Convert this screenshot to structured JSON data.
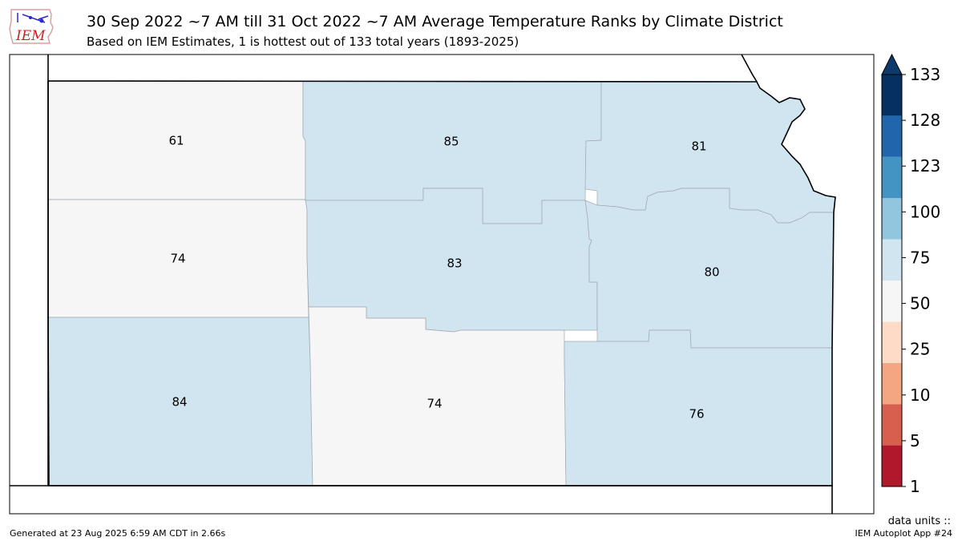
{
  "header": {
    "logo_text": "IEM",
    "title": "30 Sep 2022 ~7 AM till 31 Oct 2022 ~7 AM Average Temperature Ranks by Climate District",
    "subtitle": "Based on IEM Estimates, 1 is hottest out of 133 total years (1893-2025)"
  },
  "map": {
    "state": "Kansas",
    "districts": [
      {
        "id": "northwest",
        "rank": "61",
        "color": "#f5f6f5"
      },
      {
        "id": "north-central",
        "rank": "85",
        "color": "#d1e5f0"
      },
      {
        "id": "northeast",
        "rank": "81",
        "color": "#d1e5f0"
      },
      {
        "id": "west-central",
        "rank": "74",
        "color": "#f5f6f5"
      },
      {
        "id": "central",
        "rank": "83",
        "color": "#d1e5f0"
      },
      {
        "id": "east-central",
        "rank": "80",
        "color": "#d1e5f0"
      },
      {
        "id": "southwest",
        "rank": "84",
        "color": "#d1e5f0"
      },
      {
        "id": "south-central",
        "rank": "74",
        "color": "#f5f6f5"
      },
      {
        "id": "southeast",
        "rank": "76",
        "color": "#d1e5f0"
      }
    ]
  },
  "colorbar": {
    "ticks": [
      "1",
      "5",
      "10",
      "25",
      "50",
      "75",
      "100",
      "123",
      "128",
      "133"
    ],
    "colors": [
      "#b2182b",
      "#d6604d",
      "#f4a582",
      "#fddbc7",
      "#f5f6f5",
      "#d1e5f0",
      "#92c5de",
      "#4393c3",
      "#2166ac",
      "#053061"
    ],
    "extend_color": "#0b3a6b"
  },
  "footer": {
    "generated": "Generated at 23 Aug 2025 6:59 AM CDT in 2.66s",
    "app": "IEM Autoplot App #24",
    "units": "data units ::"
  }
}
